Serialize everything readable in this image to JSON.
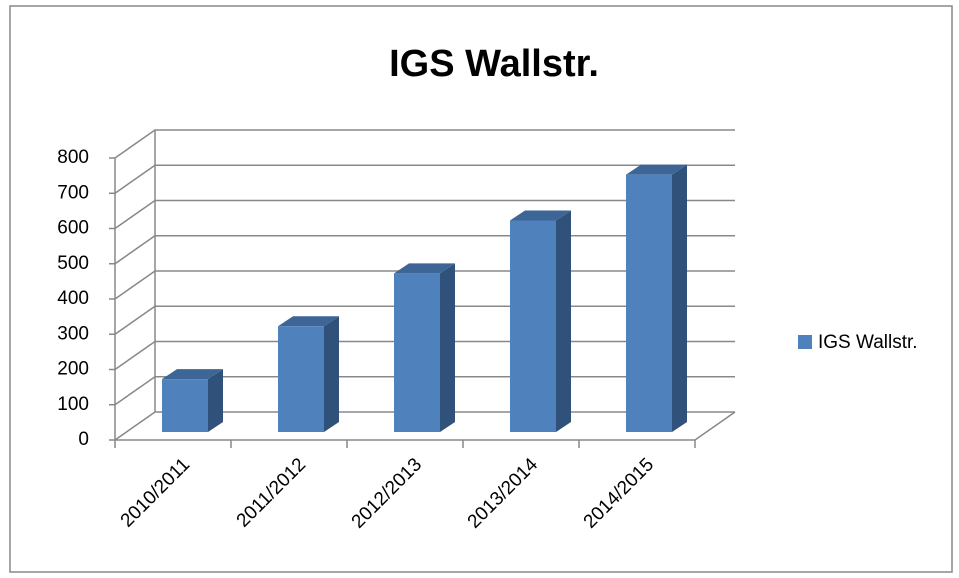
{
  "chart_data": {
    "type": "bar",
    "title": "IGS Wallstr.",
    "categories": [
      "2010/2011",
      "2011/2012",
      "2012/2013",
      "2013/2014",
      "2014/2015"
    ],
    "series": [
      {
        "name": "IGS Wallstr.",
        "color": "#4f81bd",
        "values": [
          150,
          300,
          450,
          600,
          730
        ]
      }
    ],
    "ylim": [
      0,
      800
    ],
    "yticks": [
      0,
      100,
      200,
      300,
      400,
      500,
      600,
      700,
      800
    ],
    "grid": true,
    "legend": "right"
  }
}
